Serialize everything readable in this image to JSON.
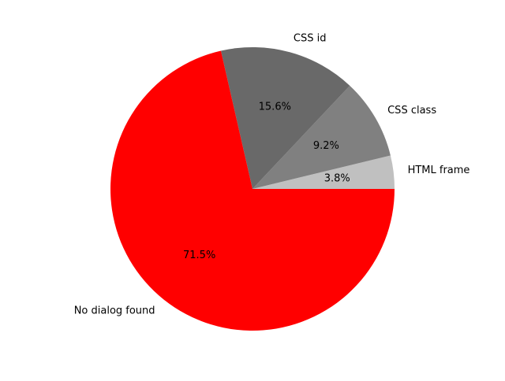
{
  "chart_data": {
    "type": "pie",
    "title": "",
    "start_angle_deg": 0,
    "direction": "counterclockwise",
    "slices": [
      {
        "label": "HTML frame",
        "pct_label": "3.8%",
        "value": 3.8,
        "color": "#c0c0c0"
      },
      {
        "label": "CSS class",
        "pct_label": "9.2%",
        "value": 9.2,
        "color": "#808080"
      },
      {
        "label": "CSS id",
        "pct_label": "15.6%",
        "value": 15.6,
        "color": "#696969"
      },
      {
        "label": "No dialog found",
        "pct_label": "71.5%",
        "value": 71.5,
        "color": "#ff0000"
      }
    ]
  }
}
